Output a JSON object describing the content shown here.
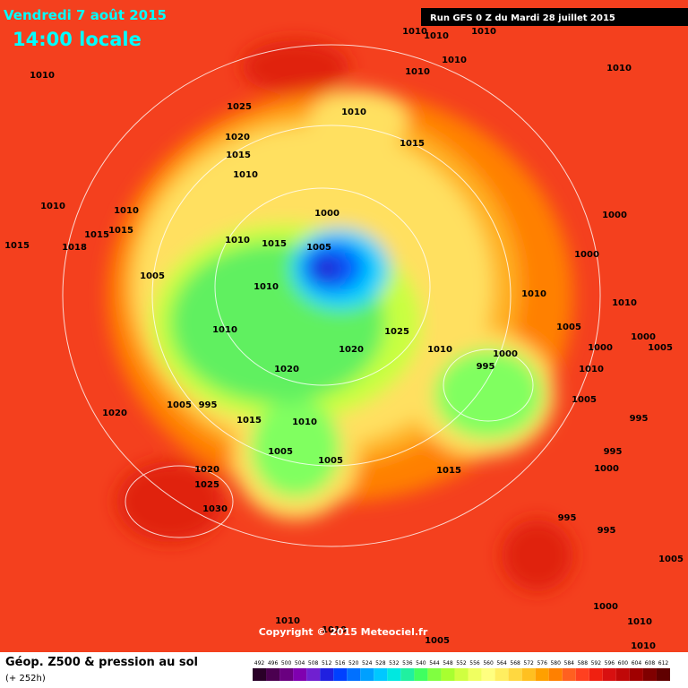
{
  "header": {
    "date": "Vendredi 7 août 2015",
    "time": "14:00 locale",
    "run": "Run GFS 0 Z du Mardi 28 juillet 2015"
  },
  "footer": {
    "title": "Géop. Z500 & pression au sol",
    "lead": "(+ 252h)",
    "copyright": "Copyright © 2015 Meteociel.fr"
  },
  "colorbar": [
    {
      "value": 492,
      "color": "#2a0028"
    },
    {
      "value": 496,
      "color": "#4b0050"
    },
    {
      "value": 500,
      "color": "#6a0080"
    },
    {
      "value": 504,
      "color": "#8000b0"
    },
    {
      "value": 508,
      "color": "#7020d0"
    },
    {
      "value": 512,
      "color": "#2020e0"
    },
    {
      "value": 516,
      "color": "#0040ff"
    },
    {
      "value": 520,
      "color": "#0070ff"
    },
    {
      "value": 524,
      "color": "#00a0ff"
    },
    {
      "value": 528,
      "color": "#00c8ff"
    },
    {
      "value": 532,
      "color": "#00e8e0"
    },
    {
      "value": 536,
      "color": "#20f0a0"
    },
    {
      "value": 540,
      "color": "#40ff60"
    },
    {
      "value": 544,
      "color": "#80ff40"
    },
    {
      "value": 548,
      "color": "#a8ff30"
    },
    {
      "value": 552,
      "color": "#d0ff40"
    },
    {
      "value": 556,
      "color": "#f0ff60"
    },
    {
      "value": 560,
      "color": "#ffff80"
    },
    {
      "value": 564,
      "color": "#ffee60"
    },
    {
      "value": 568,
      "color": "#ffd840"
    },
    {
      "value": 572,
      "color": "#ffc020"
    },
    {
      "value": 576,
      "color": "#ffa000"
    },
    {
      "value": 580,
      "color": "#ff8000"
    },
    {
      "value": 584,
      "color": "#ff6020"
    },
    {
      "value": 588,
      "color": "#ff4020"
    },
    {
      "value": 592,
      "color": "#f02010"
    },
    {
      "value": 596,
      "color": "#d81010"
    },
    {
      "value": 600,
      "color": "#c00808"
    },
    {
      "value": 604,
      "color": "#a00000"
    },
    {
      "value": 608,
      "color": "#800000"
    },
    {
      "value": 612,
      "color": "#600000"
    }
  ],
  "isobar_labels": [
    "1010",
    "1010",
    "1010",
    "1010",
    "1010",
    "1010",
    "1010",
    "1025",
    "1010",
    "1015",
    "1020",
    "1015",
    "1010",
    "1010",
    "1010",
    "1000",
    "1000",
    "1015",
    "1015",
    "1018",
    "1015",
    "1010",
    "1015",
    "1005",
    "1000",
    "1005",
    "1010",
    "1010",
    "1010",
    "1010",
    "1005",
    "1025",
    "1000",
    "1005",
    "1020",
    "1010",
    "1000",
    "1000",
    "995",
    "1010",
    "1020",
    "1005",
    "995",
    "1005",
    "1020",
    "1015",
    "1010",
    "995",
    "1005",
    "1005",
    "995",
    "1000",
    "1015",
    "1020",
    "1025",
    "1030",
    "995",
    "995",
    "1005",
    "1000",
    "1010",
    "1010",
    "1010",
    "1005",
    "1010"
  ]
}
